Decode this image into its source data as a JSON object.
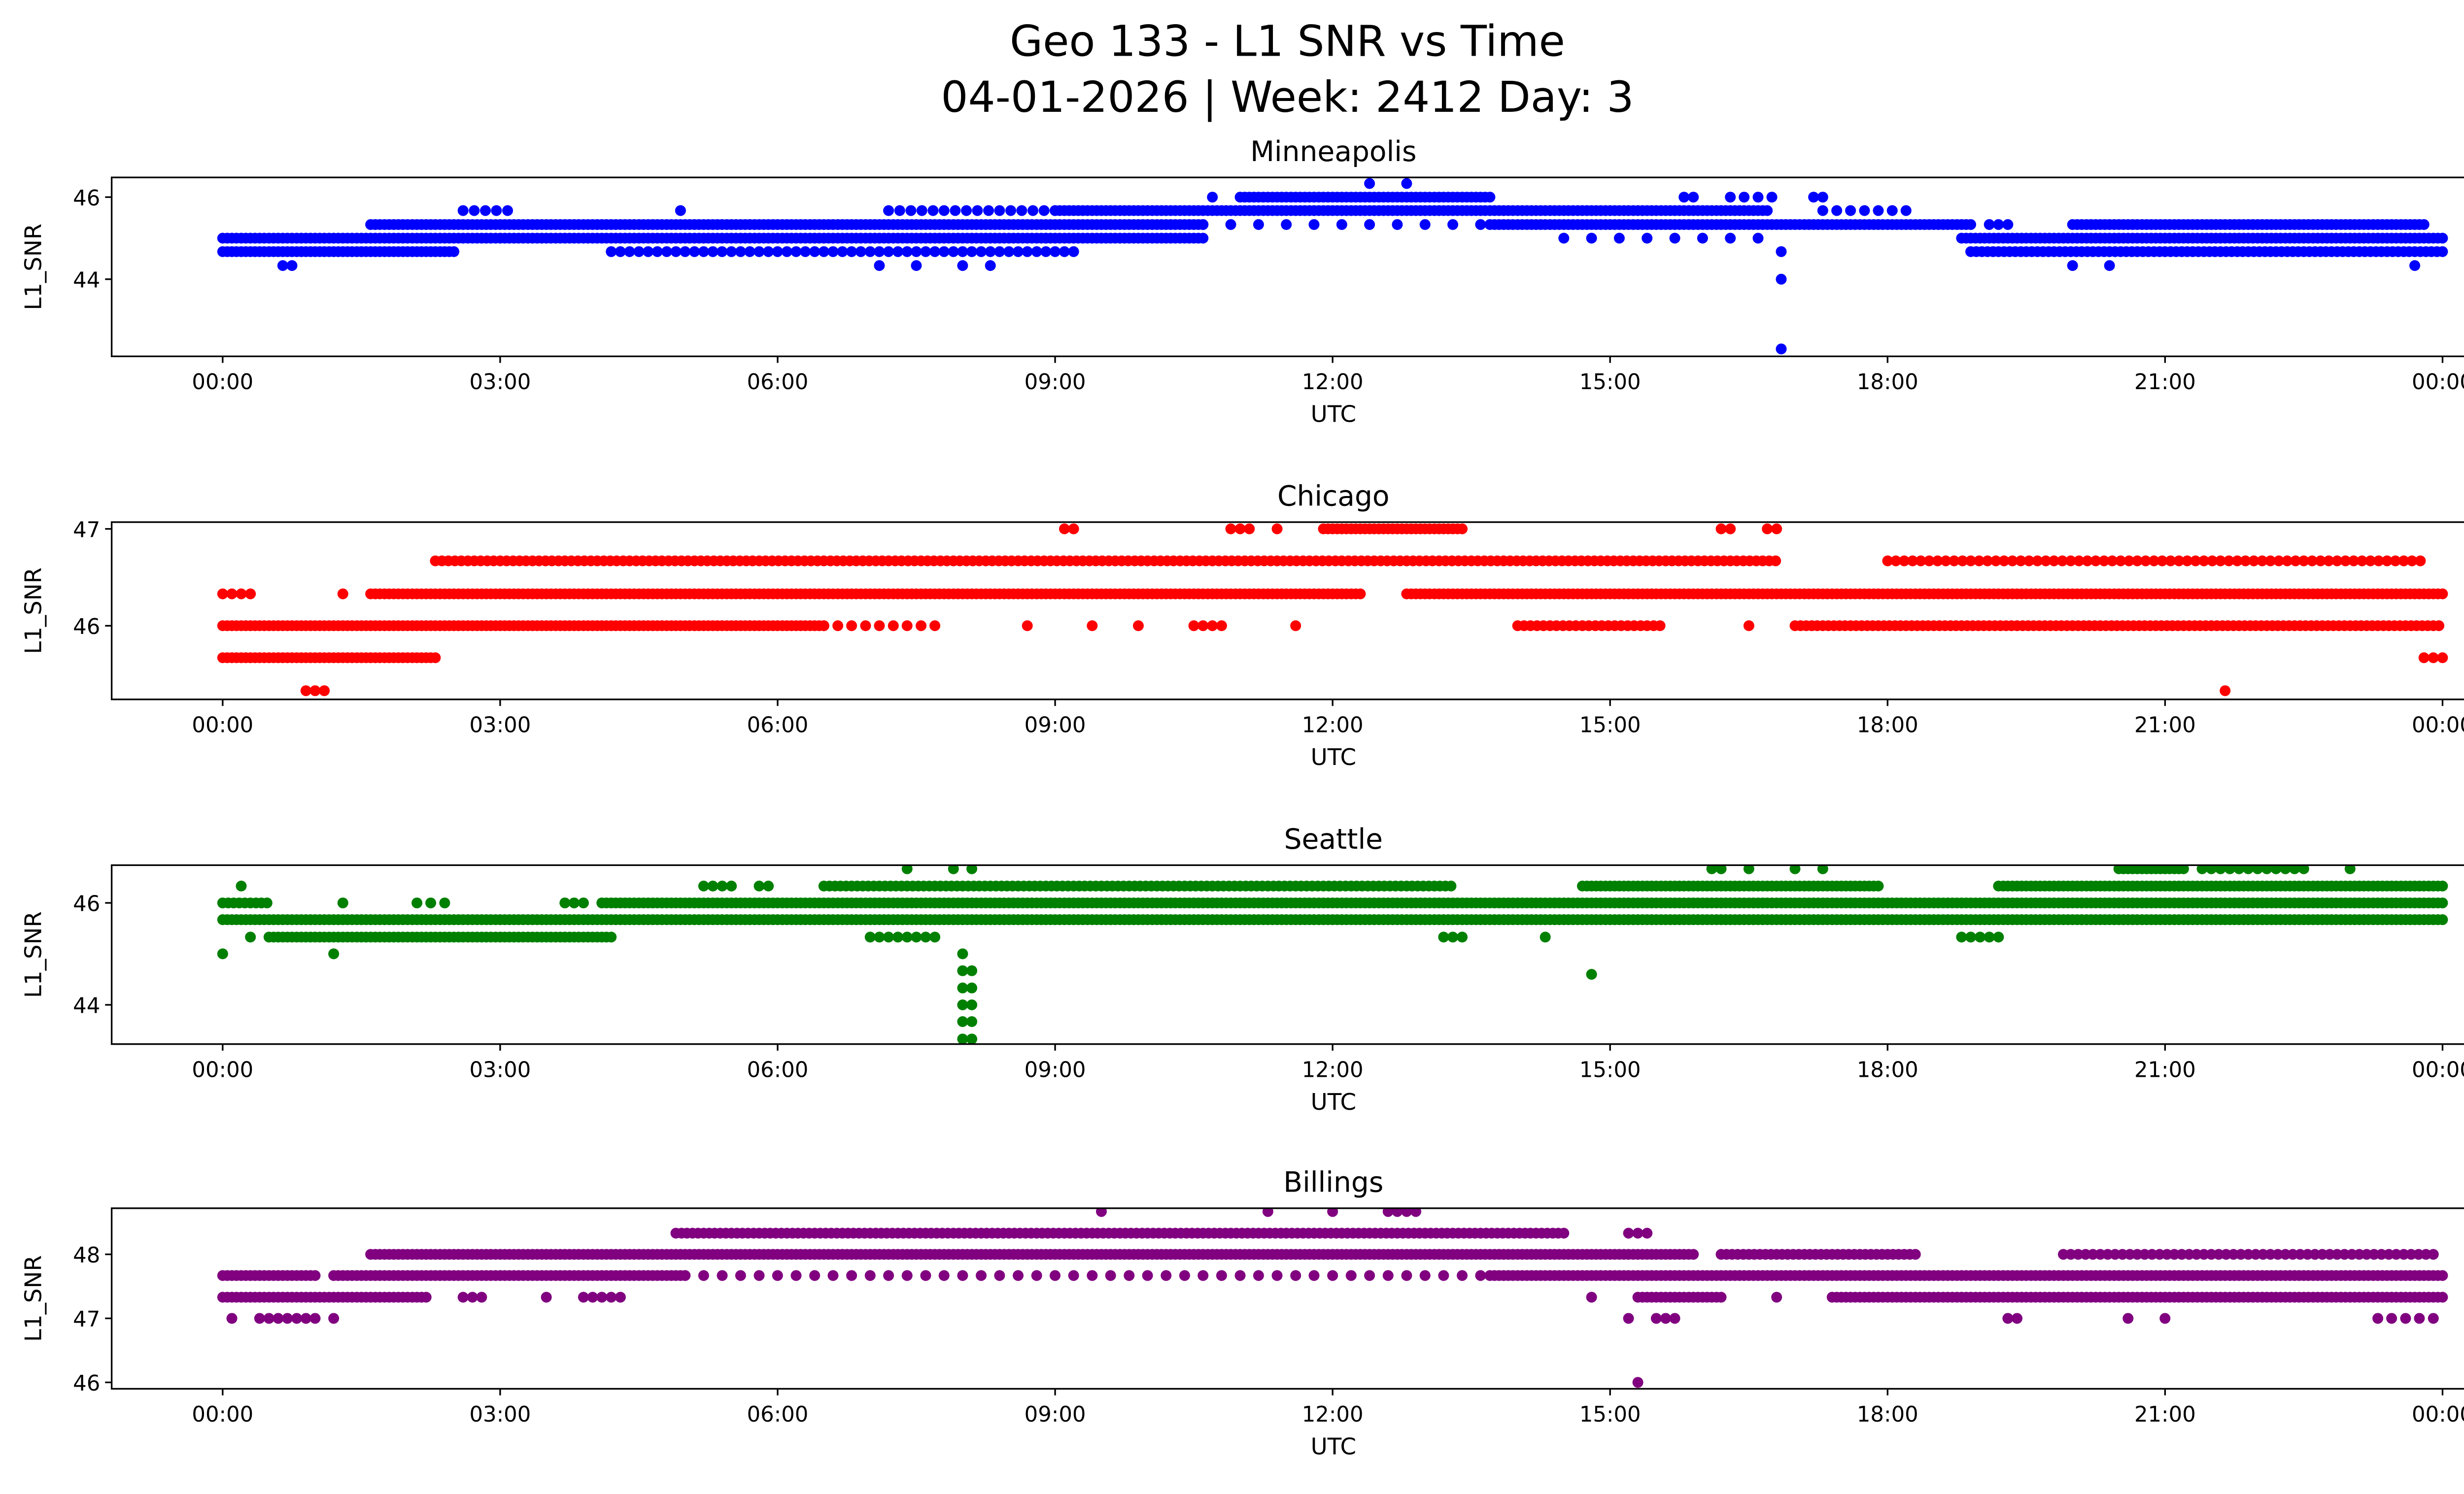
{
  "figure": {
    "title_line1": "Geo 133 - L1 SNR vs Time",
    "title_line2": "04-01-2026 | Week: 2412 Day: 3"
  },
  "chart_data": [
    {
      "type": "scatter",
      "title": "Minneapolis",
      "xlabel": "UTC",
      "ylabel": "L1_SNR",
      "color": "#0000ff",
      "xlim_hours": [
        -1.2,
        25.2
      ],
      "ylim": [
        42.12,
        46.48
      ],
      "yticks": [
        44,
        46
      ],
      "xtick_labels": [
        "00:00",
        "03:00",
        "06:00",
        "09:00",
        "12:00",
        "15:00",
        "18:00",
        "21:00",
        "00:00"
      ],
      "segments_hours_value": [
        [
          0,
          10.6,
          45.0,
          0.05
        ],
        [
          8.9,
          8.9,
          45.0,
          1
        ],
        [
          14.5,
          16.6,
          45.0,
          0.3
        ],
        [
          18.8,
          24,
          45.0,
          0.05
        ],
        [
          0,
          2.5,
          44.67,
          0.05
        ],
        [
          4.2,
          9.2,
          44.67,
          0.1
        ],
        [
          18.9,
          24,
          44.67,
          0.06
        ],
        [
          16.85,
          16.85,
          44.67,
          1
        ],
        [
          1.6,
          10.6,
          45.33,
          0.05
        ],
        [
          10.6,
          13.7,
          45.33,
          0.3
        ],
        [
          13.7,
          18.9,
          45.33,
          0.05
        ],
        [
          19.1,
          19.3,
          45.33,
          0.1
        ],
        [
          20,
          23.8,
          45.33,
          0.05
        ],
        [
          2.6,
          3.1,
          45.67,
          0.12
        ],
        [
          4.95,
          4.95,
          45.67,
          1
        ],
        [
          7.2,
          9,
          45.67,
          0.12
        ],
        [
          9,
          16.7,
          45.67,
          0.05
        ],
        [
          17.3,
          18.2,
          45.67,
          0.15
        ],
        [
          10.7,
          10.7,
          46.0,
          1
        ],
        [
          11,
          13.7,
          46.0,
          0.05
        ],
        [
          15.8,
          15.9,
          46.0,
          0.1
        ],
        [
          16.3,
          16.8,
          46.0,
          0.15
        ],
        [
          17.2,
          17.3,
          46.0,
          0.1
        ],
        [
          12.4,
          12.4,
          46.33,
          1
        ],
        [
          12.8,
          12.8,
          46.33,
          1
        ],
        [
          0.65,
          0.75,
          44.33,
          0.1
        ],
        [
          7.1,
          7.1,
          44.33,
          1
        ],
        [
          7.5,
          7.5,
          44.33,
          1
        ],
        [
          8.0,
          8.0,
          44.33,
          1
        ],
        [
          8.3,
          8.3,
          44.33,
          1
        ],
        [
          20.0,
          20.0,
          44.33,
          1
        ],
        [
          20.4,
          20.4,
          44.33,
          1
        ],
        [
          23.7,
          23.7,
          44.33,
          1
        ],
        [
          16.85,
          16.85,
          44.0,
          1
        ],
        [
          16.85,
          16.85,
          42.3,
          1
        ]
      ]
    },
    {
      "type": "scatter",
      "title": "Chicago",
      "xlabel": "UTC",
      "ylabel": "L1_SNR",
      "color": "#ff0000",
      "xlim_hours": [
        -1.2,
        25.2
      ],
      "ylim": [
        45.24,
        47.07
      ],
      "yticks": [
        46,
        47
      ],
      "xtick_labels": [
        "00:00",
        "03:00",
        "06:00",
        "09:00",
        "12:00",
        "15:00",
        "18:00",
        "21:00",
        "00:00"
      ],
      "segments_hours_value": [
        [
          0.9,
          1.1,
          45.33,
          0.1
        ],
        [
          21.65,
          21.65,
          45.33,
          1
        ],
        [
          0,
          2.3,
          45.67,
          0.05
        ],
        [
          23.8,
          24,
          45.67,
          0.1
        ],
        [
          0,
          6.5,
          46.0,
          0.05
        ],
        [
          6.5,
          7.7,
          46.0,
          0.15
        ],
        [
          8.7,
          8.7,
          46.0,
          1
        ],
        [
          9.4,
          9.4,
          46.0,
          1
        ],
        [
          9.9,
          9.9,
          46.0,
          1
        ],
        [
          10.5,
          10.8,
          46.0,
          0.1
        ],
        [
          11.6,
          11.6,
          46.0,
          1
        ],
        [
          14,
          15.6,
          46.0,
          0.07
        ],
        [
          16.5,
          16.5,
          46.0,
          1
        ],
        [
          17,
          24,
          46.0,
          0.06
        ],
        [
          0,
          0.3,
          46.33,
          0.1
        ],
        [
          1.3,
          1.3,
          46.33,
          1
        ],
        [
          1.6,
          12.3,
          46.33,
          0.05
        ],
        [
          12.8,
          24,
          46.33,
          0.05
        ],
        [
          2.3,
          16.8,
          46.67,
          0.07
        ],
        [
          18,
          23.8,
          46.67,
          0.09
        ],
        [
          9.1,
          9.2,
          47.0,
          0.1
        ],
        [
          10.9,
          11.1,
          47.0,
          0.1
        ],
        [
          11.4,
          11.4,
          47.0,
          1
        ],
        [
          11.9,
          13.4,
          47.0,
          0.05
        ],
        [
          16.2,
          16.3,
          47.0,
          0.1
        ],
        [
          16.7,
          16.8,
          47.0,
          0.1
        ]
      ]
    },
    {
      "type": "scatter",
      "title": "Seattle",
      "xlabel": "UTC",
      "ylabel": "L1_SNR",
      "color": "#008000",
      "xlim_hours": [
        -1.2,
        25.2
      ],
      "ylim": [
        43.23,
        46.74
      ],
      "yticks": [
        44,
        46
      ],
      "xtick_labels": [
        "00:00",
        "03:00",
        "06:00",
        "09:00",
        "12:00",
        "15:00",
        "18:00",
        "21:00",
        "00:00"
      ],
      "segments_hours_value": [
        [
          0.2,
          0.2,
          46.33,
          1
        ],
        [
          5.2,
          5.5,
          46.33,
          0.1
        ],
        [
          5.8,
          5.9,
          46.33,
          0.1
        ],
        [
          6.5,
          13.3,
          46.33,
          0.06
        ],
        [
          14.7,
          17.9,
          46.33,
          0.05
        ],
        [
          19.2,
          24,
          46.33,
          0.05
        ],
        [
          7.4,
          7.4,
          46.67,
          1
        ],
        [
          7.9,
          7.9,
          46.67,
          1
        ],
        [
          8.1,
          8.1,
          46.67,
          1
        ],
        [
          16.1,
          16.2,
          46.67,
          0.1
        ],
        [
          16.5,
          16.5,
          46.67,
          1
        ],
        [
          17,
          17,
          46.67,
          1
        ],
        [
          17.3,
          17.3,
          46.67,
          1
        ],
        [
          20.5,
          21.2,
          46.67,
          0.05
        ],
        [
          21.4,
          22.5,
          46.67,
          0.1
        ],
        [
          23,
          23,
          46.67,
          1
        ],
        [
          0,
          0.5,
          46.0,
          0.06
        ],
        [
          1.3,
          1.3,
          46.0,
          1
        ],
        [
          2.1,
          2.4,
          46.0,
          0.15
        ],
        [
          3.7,
          3.9,
          46.0,
          0.1
        ],
        [
          4.1,
          24,
          46.0,
          0.05
        ],
        [
          0,
          24,
          45.67,
          0.05
        ],
        [
          0.3,
          0.3,
          45.33,
          1
        ],
        [
          0.5,
          4.2,
          45.33,
          0.05
        ],
        [
          7.0,
          7.7,
          45.33,
          0.1
        ],
        [
          13.2,
          13.4,
          45.33,
          0.1
        ],
        [
          14.3,
          14.3,
          45.33,
          1
        ],
        [
          18.8,
          19.2,
          45.33,
          0.1
        ],
        [
          0,
          0,
          45.0,
          1
        ],
        [
          1.2,
          1.2,
          45.0,
          1
        ],
        [
          8.0,
          8.0,
          45.0,
          1
        ],
        [
          8.0,
          8.1,
          44.67,
          0.1
        ],
        [
          14.8,
          14.8,
          44.6,
          1
        ],
        [
          8.0,
          8.1,
          44.33,
          0.1
        ],
        [
          8.0,
          8.1,
          44.0,
          0.1
        ],
        [
          8.0,
          8.1,
          43.67,
          0.1
        ],
        [
          8.0,
          8.1,
          43.33,
          0.1
        ]
      ]
    },
    {
      "type": "scatter",
      "title": "Billings",
      "xlabel": "UTC",
      "ylabel": "L1_SNR",
      "color": "#800080",
      "xlim_hours": [
        -1.2,
        25.2
      ],
      "ylim": [
        45.9,
        48.72
      ],
      "yticks": [
        46,
        47,
        48
      ],
      "xtick_labels": [
        "00:00",
        "03:00",
        "06:00",
        "09:00",
        "12:00",
        "15:00",
        "18:00",
        "21:00",
        "00:00"
      ],
      "segments_hours_value": [
        [
          0.1,
          0.1,
          47.0,
          1
        ],
        [
          0.4,
          1.0,
          47.0,
          0.1
        ],
        [
          1.2,
          1.2,
          47.0,
          1
        ],
        [
          15.2,
          15.2,
          47.0,
          1
        ],
        [
          15.5,
          15.7,
          47.0,
          0.1
        ],
        [
          19.3,
          19.4,
          47.0,
          0.1
        ],
        [
          20.6,
          20.6,
          47.0,
          1
        ],
        [
          21.0,
          21.0,
          47.0,
          1
        ],
        [
          23.3,
          23.9,
          47.0,
          0.15
        ],
        [
          0,
          2.2,
          47.33,
          0.05
        ],
        [
          2.6,
          2.8,
          47.33,
          0.1
        ],
        [
          3.5,
          3.5,
          47.33,
          1
        ],
        [
          3.9,
          4.3,
          47.33,
          0.1
        ],
        [
          14.8,
          14.8,
          47.33,
          1
        ],
        [
          15.3,
          16.2,
          47.33,
          0.05
        ],
        [
          16.8,
          16.8,
          47.33,
          1
        ],
        [
          17.4,
          24,
          47.33,
          0.05
        ],
        [
          0,
          1.0,
          47.67,
          0.05
        ],
        [
          1.2,
          5.0,
          47.67,
          0.05
        ],
        [
          5.0,
          13.7,
          47.67,
          0.2
        ],
        [
          13.7,
          24,
          47.67,
          0.05
        ],
        [
          1.6,
          15.9,
          48.0,
          0.05
        ],
        [
          16.2,
          18.3,
          48.0,
          0.06
        ],
        [
          19.9,
          23.9,
          48.0,
          0.08
        ],
        [
          4.9,
          14.5,
          48.33,
          0.06
        ],
        [
          15.2,
          15.4,
          48.33,
          0.1
        ],
        [
          9.5,
          9.5,
          48.67,
          1
        ],
        [
          11.3,
          11.3,
          48.67,
          1
        ],
        [
          12.0,
          12.0,
          48.67,
          1
        ],
        [
          12.6,
          12.9,
          48.67,
          0.1
        ],
        [
          15.3,
          15.3,
          46.0,
          1
        ]
      ]
    }
  ]
}
